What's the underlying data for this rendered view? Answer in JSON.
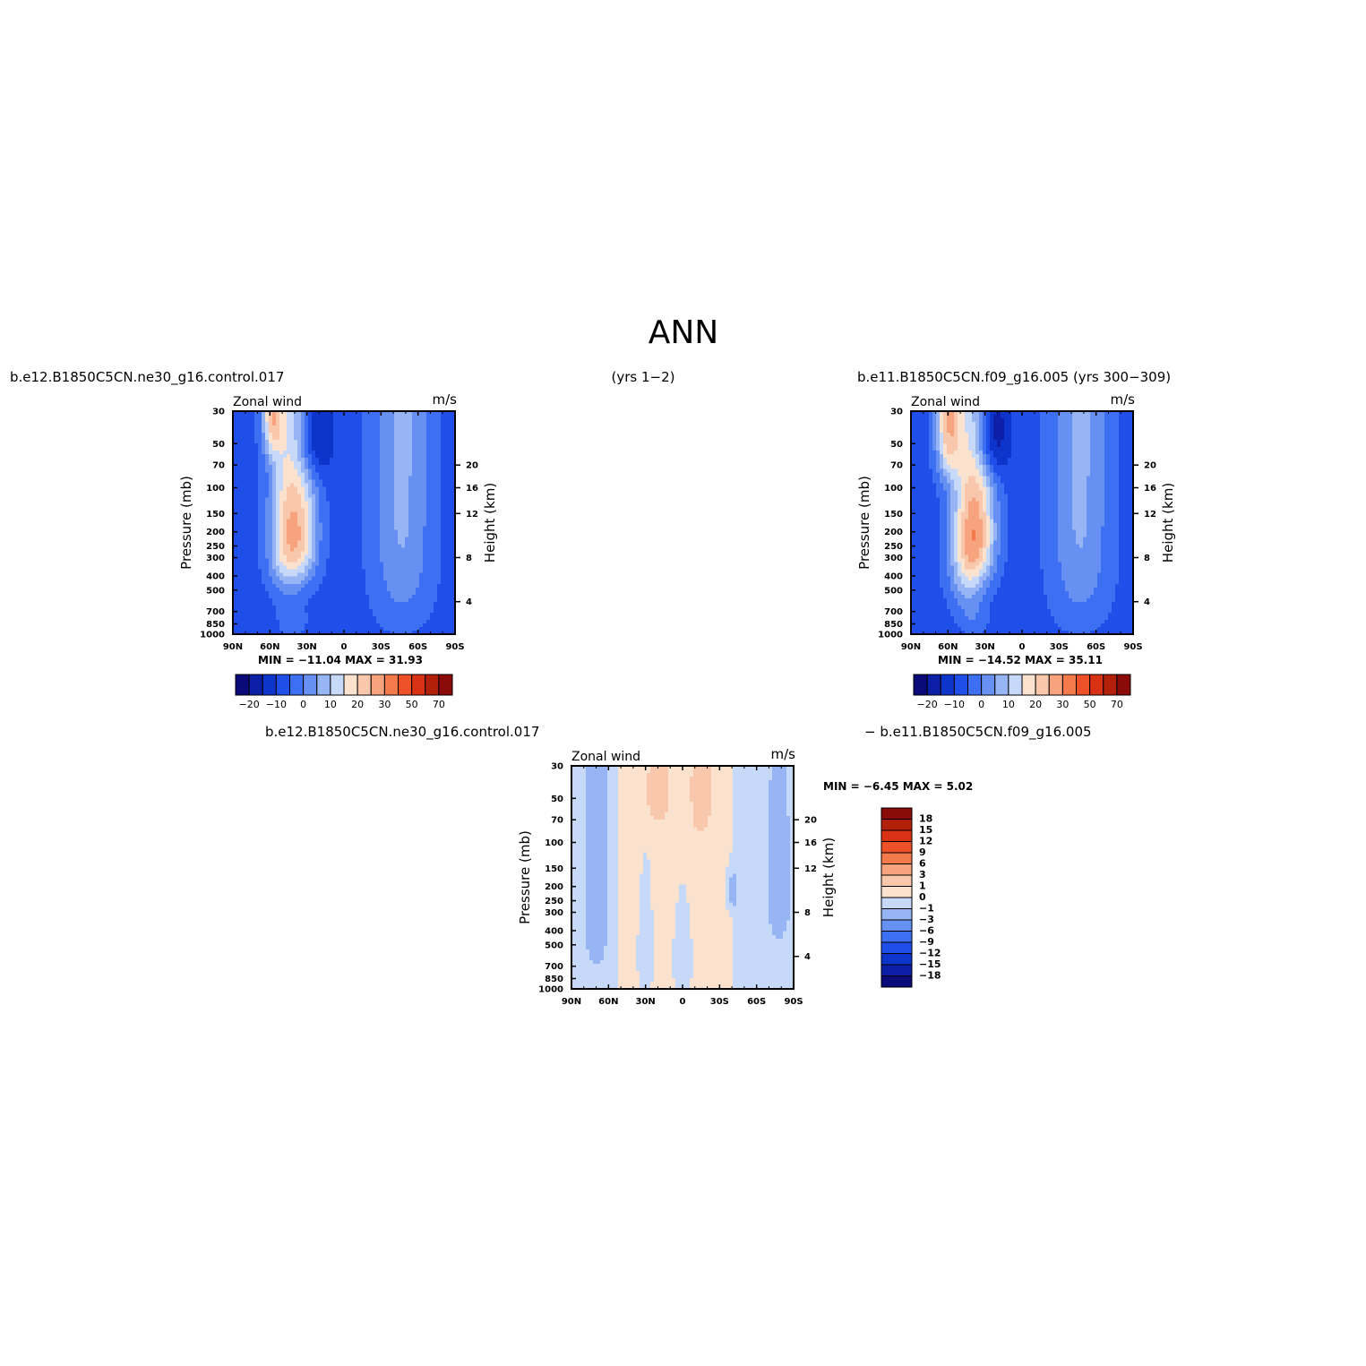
{
  "figure": {
    "title": "ANN",
    "header_left": "b.e12.B1850C5CN.ne30_g16.control.017",
    "header_center": "(yrs 1−2)",
    "header_right": "b.e11.B1850C5CN.f09_g16.005 (yrs 300−309)",
    "diff_header_left": "b.e12.B1850C5CN.ne30_g16.control.017",
    "diff_header_right": "− b.e11.B1850C5CN.f09_g16.005"
  },
  "chart_data": [
    {
      "type": "heatmap",
      "id": "panel-a",
      "title_left": "Zonal wind",
      "title_right": "m/s",
      "ylabel": "Pressure (mb)",
      "ylabel_right": "Height (km)",
      "x_ticks": [
        "90N",
        "60N",
        "30N",
        "0",
        "30S",
        "60S",
        "90S"
      ],
      "y_ticks": [
        "30",
        "50",
        "70",
        "100",
        "150",
        "200",
        "250",
        "300",
        "400",
        "500",
        "700",
        "850",
        "1000"
      ],
      "y_ticks_right": [
        "20",
        "16",
        "12",
        "8",
        "4"
      ],
      "min_label": "MIN =",
      "min_value": "−11.04",
      "max_label": "MAX =",
      "max_value": "31.93",
      "colorbar_labels": [
        "−20",
        "−10",
        "0",
        "10",
        "20",
        "30",
        "50",
        "70"
      ],
      "levels": [
        -20,
        -15,
        -10,
        -5,
        0,
        5,
        10,
        15,
        20,
        25,
        30,
        40,
        50,
        60,
        70
      ],
      "features": [
        {
          "kind": "background",
          "value": -7
        },
        {
          "kind": "blob",
          "lat": -47,
          "lev": 55,
          "rx": 24,
          "ry": 700,
          "value": 13
        },
        {
          "kind": "blob",
          "lat": 25,
          "lev": 45,
          "rx": 14,
          "ry": 40,
          "value": -14
        },
        {
          "kind": "blob",
          "lat": 58,
          "lev": 30,
          "rx": 8,
          "ry": 28,
          "value": 24
        },
        {
          "kind": "blob",
          "lat": 34,
          "lev": 200,
          "rx": 14,
          "ry": 220,
          "value": 22
        },
        {
          "kind": "blob",
          "lat": 48,
          "lev": 210,
          "rx": 14,
          "ry": 260,
          "value": 22
        },
        {
          "kind": "blob",
          "lat": 42,
          "lev": 800,
          "rx": 12,
          "ry": 260,
          "value": 5
        }
      ]
    },
    {
      "type": "heatmap",
      "id": "panel-b",
      "title_left": "Zonal wind",
      "title_right": "m/s",
      "ylabel": "Pressure (mb)",
      "ylabel_right": "Height (km)",
      "x_ticks": [
        "90N",
        "60N",
        "30N",
        "0",
        "30S",
        "60S",
        "90S"
      ],
      "y_ticks": [
        "30",
        "50",
        "70",
        "100",
        "150",
        "200",
        "250",
        "300",
        "400",
        "500",
        "700",
        "850",
        "1000"
      ],
      "y_ticks_right": [
        "20",
        "16",
        "12",
        "8",
        "4"
      ],
      "min_label": "MIN =",
      "min_value": "−14.52",
      "max_label": "MAX =",
      "max_value": "35.11",
      "colorbar_labels": [
        "−20",
        "−10",
        "0",
        "10",
        "20",
        "30",
        "50",
        "70"
      ],
      "levels": [
        -20,
        -15,
        -10,
        -5,
        0,
        5,
        10,
        15,
        20,
        25,
        30,
        40,
        50,
        60,
        70
      ],
      "features": [
        {
          "kind": "background",
          "value": -7
        },
        {
          "kind": "blob",
          "lat": -47,
          "lev": 55,
          "rx": 24,
          "ry": 700,
          "value": 13
        },
        {
          "kind": "blob",
          "lat": 25,
          "lev": 42,
          "rx": 14,
          "ry": 38,
          "value": -17
        },
        {
          "kind": "blob",
          "lat": 60,
          "lev": 35,
          "rx": 10,
          "ry": 45,
          "value": 27
        },
        {
          "kind": "blob",
          "lat": 34,
          "lev": 200,
          "rx": 14,
          "ry": 220,
          "value": 24
        },
        {
          "kind": "blob",
          "lat": 46,
          "lev": 250,
          "rx": 14,
          "ry": 320,
          "value": 21
        },
        {
          "kind": "blob",
          "lat": 40,
          "lev": 750,
          "rx": 12,
          "ry": 250,
          "value": 6
        }
      ]
    },
    {
      "type": "heatmap",
      "id": "panel-diff",
      "title_left": "Zonal wind",
      "title_right": "m/s",
      "ylabel": "Pressure (mb)",
      "ylabel_right": "Height (km)",
      "x_ticks": [
        "90N",
        "60N",
        "30N",
        "0",
        "30S",
        "60S",
        "90S"
      ],
      "y_ticks": [
        "30",
        "50",
        "70",
        "100",
        "150",
        "200",
        "250",
        "300",
        "400",
        "500",
        "700",
        "850",
        "1000"
      ],
      "y_ticks_right": [
        "20",
        "16",
        "12",
        "8",
        "4"
      ],
      "min_label": "MIN =",
      "min_value": "−6.45",
      "max_label": "MAX =",
      "max_value": "5.02",
      "colorbar_labels": [
        "18",
        "15",
        "12",
        "9",
        "6",
        "3",
        "1",
        "0",
        "−1",
        "−3",
        "−6",
        "−9",
        "−12",
        "−15",
        "−18"
      ],
      "levels": [
        -18,
        -15,
        -12,
        -9,
        -6,
        -3,
        -1,
        0,
        1,
        3,
        6,
        9,
        12,
        15,
        18
      ],
      "features": [
        {
          "kind": "background",
          "value": -0.5
        },
        {
          "kind": "band",
          "lat0": -40,
          "lat1": 52,
          "value": 0.6
        },
        {
          "kind": "blob",
          "lat": -15,
          "lev": 45,
          "rx": 8,
          "ry": 40,
          "value": 2.4
        },
        {
          "kind": "blob",
          "lat": 20,
          "lev": 45,
          "rx": 12,
          "ry": 35,
          "value": 1.6
        },
        {
          "kind": "blob",
          "lat": 0,
          "lev": 650,
          "rx": 6,
          "ry": 350,
          "value": -0.6
        },
        {
          "kind": "blob",
          "lat": 30,
          "lev": 600,
          "rx": 5,
          "ry": 380,
          "value": -0.6
        },
        {
          "kind": "blob",
          "lat": -78,
          "lev": 200,
          "rx": 8,
          "ry": 220,
          "value": -1.8
        },
        {
          "kind": "blob",
          "lat": 70,
          "lev": 250,
          "rx": 8,
          "ry": 350,
          "value": -2.2
        },
        {
          "kind": "blob",
          "lat": -40,
          "lev": 220,
          "rx": 3,
          "ry": 60,
          "value": -2.0
        },
        {
          "kind": "blob",
          "lat": 85,
          "lev": 450,
          "rx": 4,
          "ry": 400,
          "value": 0.5
        }
      ]
    }
  ],
  "palette": {
    "colors": [
      "#0a0a78",
      "#0c1fa6",
      "#0d35cc",
      "#1f4fe8",
      "#3d6ff2",
      "#6690f2",
      "#97b4f4",
      "#c6d9f8",
      "#fbe2cf",
      "#f9c7ab",
      "#f7a47e",
      "#f47a4c",
      "#ee5127",
      "#d83114",
      "#b3200a",
      "#8b0a0a"
    ]
  }
}
